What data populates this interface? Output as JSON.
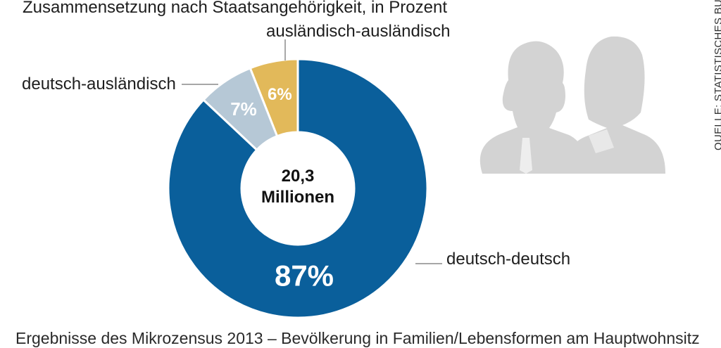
{
  "subtitle": "Zusammensetzung nach Staatsangehörigkeit, in Prozent",
  "footer": "Ergebnisse des Mikrozensus 2013 – Bevölkerung in Familien/Lebensformen am Hauptwohnsitz",
  "source": "QUELLE: STATISTISCHES BUNDESAMT",
  "center": {
    "line1": "20,3",
    "line2": "Millionen"
  },
  "icon": "two-people-silhouette-icon",
  "chart_data": {
    "type": "pie",
    "donut": true,
    "slices": [
      {
        "label": "ausländisch-ausländisch",
        "value": 6,
        "value_label": "6%",
        "color": "#e2b95a"
      },
      {
        "label": "deutsch-ausländisch",
        "value": 7,
        "value_label": "7%",
        "color": "#b6c8d6"
      },
      {
        "label": "deutsch-deutsch",
        "value": 87,
        "value_label": "87%",
        "color": "#0a5f9b"
      }
    ],
    "center_text": "20,3 Millionen",
    "direction": "counter-clockwise from top"
  }
}
